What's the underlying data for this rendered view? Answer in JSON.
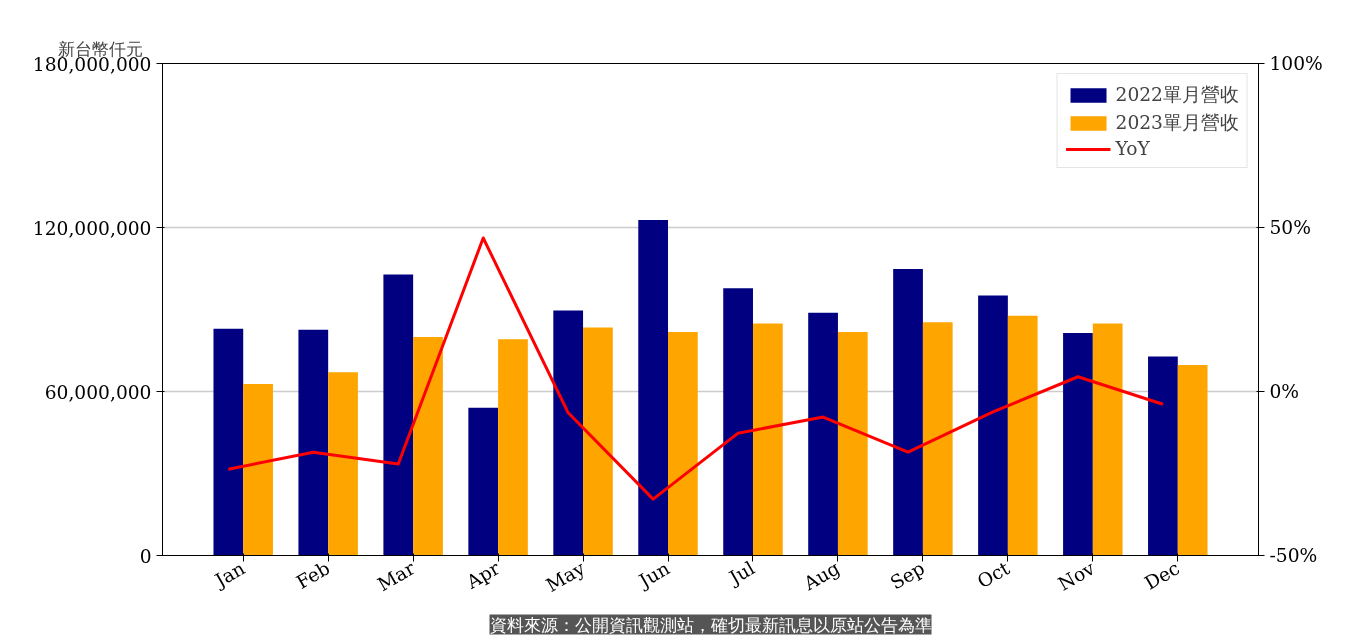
{
  "chart_data": {
    "type": "bar",
    "ylabel": "新台幣仟元",
    "categories": [
      "Jan",
      "Feb",
      "Mar",
      "Apr",
      "May",
      "Jun",
      "Jul",
      "Aug",
      "Sep",
      "Oct",
      "Nov",
      "Dec"
    ],
    "series": [
      {
        "name": "2022單月營收",
        "color": "#000080",
        "values": [
          83000000.0,
          82600000.0,
          102800000.0,
          54100000.0,
          89600000.0,
          122700000.0,
          97800000.0,
          88800000.0,
          104800000.0,
          95100000.0,
          81400000.0,
          72800000.0
        ]
      },
      {
        "name": "2023單月營收",
        "color": "#ffa500",
        "values": [
          62700000.0,
          67000000.0,
          79900000.0,
          79100000.0,
          83400000.0,
          81800000.0,
          84900000.0,
          81800000.0,
          85300000.0,
          87700000.0,
          84900000.0,
          69700000.0
        ]
      },
      {
        "name": "YoY",
        "type": "line",
        "axis": "y2",
        "color": "#ff0000",
        "values": [
          -23.7,
          -18.5,
          -22.1,
          46.8,
          -6.5,
          -32.8,
          -12.7,
          -7.8,
          -18.5,
          -6.2,
          4.5,
          -3.9
        ]
      }
    ],
    "ylim": [
      0,
      180000000
    ],
    "yticks": [
      {
        "value": 0,
        "label": "0"
      },
      {
        "value": 60000000,
        "label": "60,000,000"
      },
      {
        "value": 120000000,
        "label": "120,000,000"
      },
      {
        "value": 180000000,
        "label": "180,000,000"
      }
    ],
    "y2lim": [
      -50,
      100
    ],
    "y2ticks": [
      {
        "value": -50,
        "label": "-50%"
      },
      {
        "value": 0,
        "label": "0%"
      },
      {
        "value": 50,
        "label": "50%"
      },
      {
        "value": 100,
        "label": "100%"
      }
    ],
    "grid": "y",
    "legend": "top right",
    "line_style": "solid",
    "annotations": [
      "資料來源：公開資訊觀測站，確切最新訊息以原站公告為準"
    ]
  }
}
